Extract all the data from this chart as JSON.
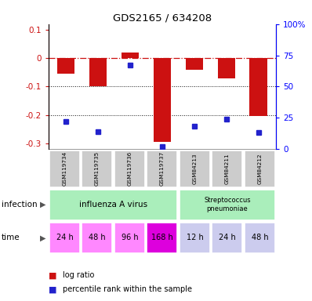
{
  "title": "GDS2165 / 634208",
  "samples": [
    "GSM119734",
    "GSM119735",
    "GSM119736",
    "GSM119737",
    "GSM84213",
    "GSM84211",
    "GSM84212"
  ],
  "log_ratios": [
    -0.055,
    -0.1,
    0.02,
    -0.295,
    -0.04,
    -0.07,
    -0.205
  ],
  "percentile_ranks": [
    22,
    14,
    67,
    2,
    18,
    24,
    13
  ],
  "ylim_left": [
    -0.32,
    0.12
  ],
  "ylim_right": [
    0,
    100
  ],
  "yticks_left": [
    0.1,
    0,
    -0.1,
    -0.2,
    -0.3
  ],
  "yticks_right": [
    100,
    75,
    50,
    25,
    0
  ],
  "bar_color": "#cc1111",
  "dot_color": "#2222cc",
  "background_color": "#ffffff",
  "zero_line_color": "#cc1111",
  "dot_line_color": "#111111",
  "time_labels": [
    "24 h",
    "48 h",
    "96 h",
    "168 h",
    "12 h",
    "24 h",
    "48 h"
  ],
  "time_colors_flu": "#ff88ff",
  "time_color_168h": "#dd00dd",
  "time_colors_strep": "#ccccee",
  "infection_color": "#aaeebb",
  "sample_box_color": "#cccccc",
  "influenza_label": "influenza A virus",
  "strep_label": "Streptococcus\npneumoniae"
}
